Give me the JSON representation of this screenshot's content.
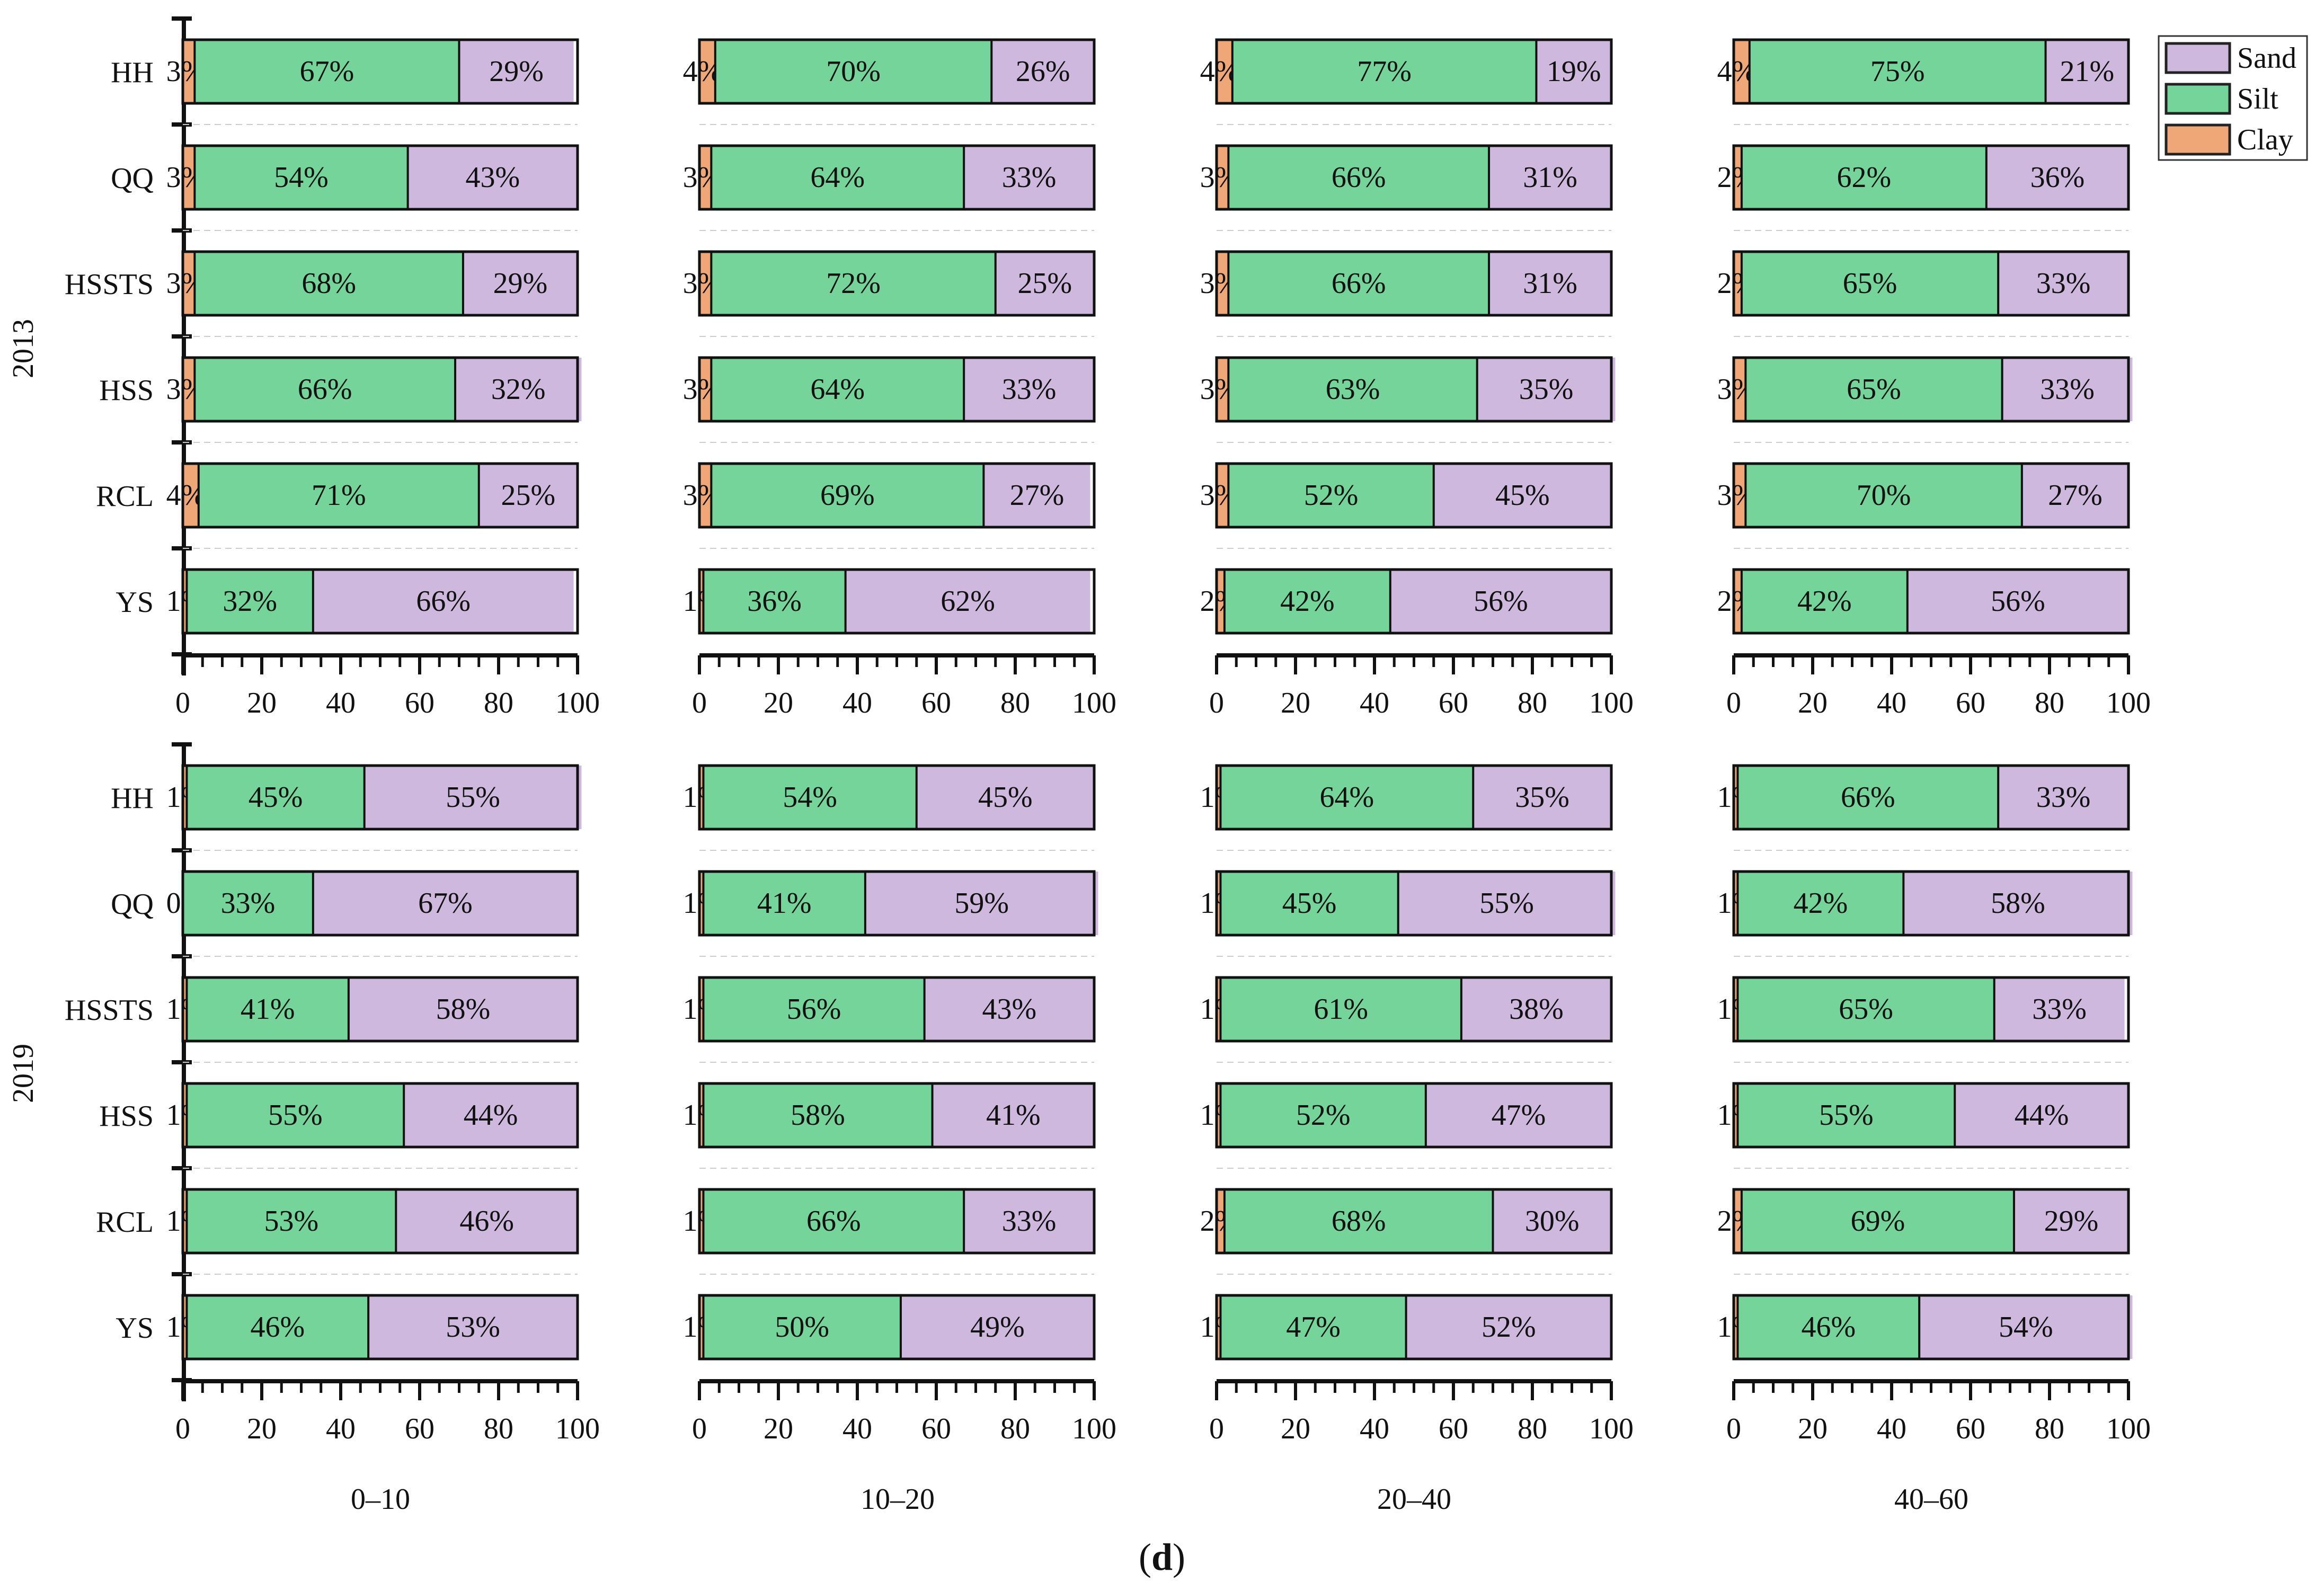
{
  "chart_data": {
    "type": "bar",
    "orientation": "horizontal",
    "stacked": true,
    "figure_label": "d",
    "categories": [
      "HH",
      "QQ",
      "HSSTS",
      "HSS",
      "RCL",
      "YS"
    ],
    "series_order": [
      "Clay",
      "Silt",
      "Sand"
    ],
    "legend": [
      {
        "name": "Sand",
        "color": "#cfb8de"
      },
      {
        "name": "Silt",
        "color": "#74d49a"
      },
      {
        "name": "Clay",
        "color": "#f0a777"
      }
    ],
    "legend_position": "top-right",
    "xlim": [
      0,
      100
    ],
    "xticks": [
      0,
      20,
      40,
      60,
      80,
      100
    ],
    "depths": [
      "0–10",
      "10–20",
      "20–40",
      "40–60"
    ],
    "years": [
      {
        "year": "2013",
        "depth_panels": [
          {
            "depth": "0–10",
            "rows": [
              {
                "category": "HH",
                "Clay": 3,
                "Silt": 67,
                "Sand": 29
              },
              {
                "category": "QQ",
                "Clay": 3,
                "Silt": 54,
                "Sand": 43
              },
              {
                "category": "HSSTS",
                "Clay": 3,
                "Silt": 68,
                "Sand": 29
              },
              {
                "category": "HSS",
                "Clay": 3,
                "Silt": 66,
                "Sand": 32
              },
              {
                "category": "RCL",
                "Clay": 4,
                "Silt": 71,
                "Sand": 25
              },
              {
                "category": "YS",
                "Clay": 1,
                "Silt": 32,
                "Sand": 66
              }
            ]
          },
          {
            "depth": "10–20",
            "rows": [
              {
                "category": "HH",
                "Clay": 4,
                "Silt": 70,
                "Sand": 26
              },
              {
                "category": "QQ",
                "Clay": 3,
                "Silt": 64,
                "Sand": 33
              },
              {
                "category": "HSSTS",
                "Clay": 3,
                "Silt": 72,
                "Sand": 25
              },
              {
                "category": "HSS",
                "Clay": 3,
                "Silt": 64,
                "Sand": 33
              },
              {
                "category": "RCL",
                "Clay": 3,
                "Silt": 69,
                "Sand": 27
              },
              {
                "category": "YS",
                "Clay": 1,
                "Silt": 36,
                "Sand": 62
              }
            ]
          },
          {
            "depth": "20–40",
            "rows": [
              {
                "category": "HH",
                "Clay": 4,
                "Silt": 77,
                "Sand": 19
              },
              {
                "category": "QQ",
                "Clay": 3,
                "Silt": 66,
                "Sand": 31
              },
              {
                "category": "HSSTS",
                "Clay": 3,
                "Silt": 66,
                "Sand": 31
              },
              {
                "category": "HSS",
                "Clay": 3,
                "Silt": 63,
                "Sand": 35
              },
              {
                "category": "RCL",
                "Clay": 3,
                "Silt": 52,
                "Sand": 45
              },
              {
                "category": "YS",
                "Clay": 2,
                "Silt": 42,
                "Sand": 56
              }
            ]
          },
          {
            "depth": "40–60",
            "rows": [
              {
                "category": "HH",
                "Clay": 4,
                "Silt": 75,
                "Sand": 21
              },
              {
                "category": "QQ",
                "Clay": 2,
                "Silt": 62,
                "Sand": 36
              },
              {
                "category": "HSSTS",
                "Clay": 2,
                "Silt": 65,
                "Sand": 33
              },
              {
                "category": "HSS",
                "Clay": 3,
                "Silt": 65,
                "Sand": 33
              },
              {
                "category": "RCL",
                "Clay": 3,
                "Silt": 70,
                "Sand": 27
              },
              {
                "category": "YS",
                "Clay": 2,
                "Silt": 42,
                "Sand": 56
              }
            ]
          }
        ]
      },
      {
        "year": "2019",
        "depth_panels": [
          {
            "depth": "0–10",
            "rows": [
              {
                "category": "HH",
                "Clay": 1,
                "Silt": 45,
                "Sand": 55
              },
              {
                "category": "QQ",
                "Clay": 0,
                "Silt": 33,
                "Sand": 67
              },
              {
                "category": "HSSTS",
                "Clay": 1,
                "Silt": 41,
                "Sand": 58
              },
              {
                "category": "HSS",
                "Clay": 1,
                "Silt": 55,
                "Sand": 44
              },
              {
                "category": "RCL",
                "Clay": 1,
                "Silt": 53,
                "Sand": 46
              },
              {
                "category": "YS",
                "Clay": 1,
                "Silt": 46,
                "Sand": 53
              }
            ]
          },
          {
            "depth": "10–20",
            "rows": [
              {
                "category": "HH",
                "Clay": 1,
                "Silt": 54,
                "Sand": 45
              },
              {
                "category": "QQ",
                "Clay": 1,
                "Silt": 41,
                "Sand": 59
              },
              {
                "category": "HSSTS",
                "Clay": 1,
                "Silt": 56,
                "Sand": 43
              },
              {
                "category": "HSS",
                "Clay": 1,
                "Silt": 58,
                "Sand": 41
              },
              {
                "category": "RCL",
                "Clay": 1,
                "Silt": 66,
                "Sand": 33
              },
              {
                "category": "YS",
                "Clay": 1,
                "Silt": 50,
                "Sand": 49
              }
            ]
          },
          {
            "depth": "20–40",
            "rows": [
              {
                "category": "HH",
                "Clay": 1,
                "Silt": 64,
                "Sand": 35
              },
              {
                "category": "QQ",
                "Clay": 1,
                "Silt": 45,
                "Sand": 55
              },
              {
                "category": "HSSTS",
                "Clay": 1,
                "Silt": 61,
                "Sand": 38
              },
              {
                "category": "HSS",
                "Clay": 1,
                "Silt": 52,
                "Sand": 47
              },
              {
                "category": "RCL",
                "Clay": 2,
                "Silt": 68,
                "Sand": 30
              },
              {
                "category": "YS",
                "Clay": 1,
                "Silt": 47,
                "Sand": 52
              }
            ]
          },
          {
            "depth": "40–60",
            "rows": [
              {
                "category": "HH",
                "Clay": 1,
                "Silt": 66,
                "Sand": 33
              },
              {
                "category": "QQ",
                "Clay": 1,
                "Silt": 42,
                "Sand": 58
              },
              {
                "category": "HSSTS",
                "Clay": 1,
                "Silt": 65,
                "Sand": 33
              },
              {
                "category": "HSS",
                "Clay": 1,
                "Silt": 55,
                "Sand": 44
              },
              {
                "category": "RCL",
                "Clay": 2,
                "Silt": 69,
                "Sand": 29
              },
              {
                "category": "YS",
                "Clay": 1,
                "Silt": 46,
                "Sand": 54
              }
            ]
          }
        ]
      }
    ]
  }
}
